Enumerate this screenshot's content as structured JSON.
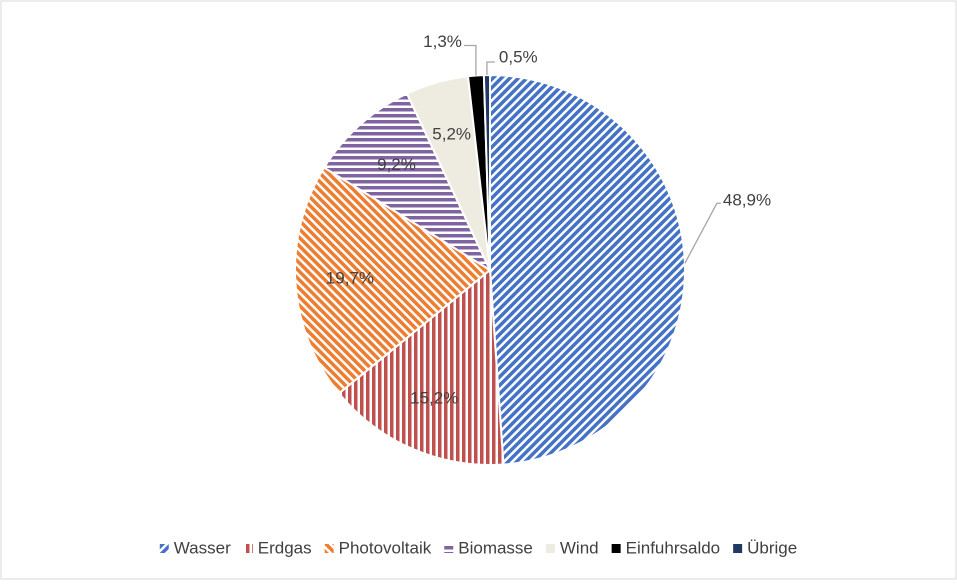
{
  "chart_data": {
    "type": "pie",
    "categories": [
      "Wasser",
      "Erdgas",
      "Photovoltaik",
      "Biomasse",
      "Wind",
      "Einfuhrsaldo",
      "Übrige"
    ],
    "values": [
      48.9,
      15.2,
      19.7,
      9.2,
      5.2,
      1.3,
      0.5
    ],
    "value_labels": [
      "48,9%",
      "15,2%",
      "19,7%",
      "9,2%",
      "5,2%",
      "1,3%",
      "0,5%"
    ],
    "colors": [
      "#4472c4",
      "#c0504d",
      "#ed7d31",
      "#8064a2",
      "#eeece1",
      "#000000",
      "#1f3864"
    ],
    "patterns": [
      "diagonal",
      "vertical",
      "diagonal-reverse",
      "horizontal",
      "solid",
      "solid",
      "solid"
    ],
    "legend": "bottom"
  }
}
